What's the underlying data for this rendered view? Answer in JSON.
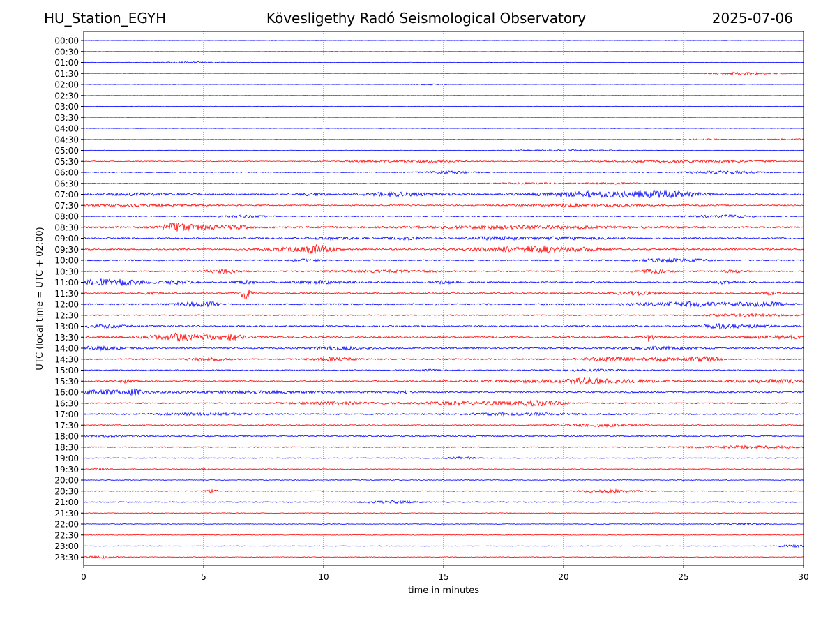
{
  "header": {
    "station": "HU_Station_EGYH",
    "title": "Kövesligethy Radó Seismological Observatory",
    "date": "2025-07-06"
  },
  "chart_data": {
    "type": "line",
    "xlabel": "time in minutes",
    "ylabel": "UTC (local time = UTC + 02:00)",
    "xlim": [
      0,
      30
    ],
    "x_ticks": [
      0,
      5,
      10,
      15,
      20,
      25,
      30
    ],
    "grid": "vertical dotted at x ticks",
    "trace_colors": [
      "#0000ff",
      "#ff0000"
    ],
    "traces": [
      {
        "label": "00:00",
        "noise": 0.25,
        "events": []
      },
      {
        "label": "00:30",
        "noise": 0.25,
        "events": []
      },
      {
        "label": "01:00",
        "noise": 0.3,
        "events": [
          [
            4.5,
            1.0,
            0.8
          ]
        ]
      },
      {
        "label": "01:30",
        "noise": 0.25,
        "events": [
          [
            27.5,
            1.0,
            1.8
          ]
        ]
      },
      {
        "label": "02:00",
        "noise": 0.25,
        "events": [
          [
            14.3,
            0.5,
            0.8
          ]
        ]
      },
      {
        "label": "02:30",
        "noise": 0.25,
        "events": []
      },
      {
        "label": "03:00",
        "noise": 0.3,
        "events": []
      },
      {
        "label": "03:30",
        "noise": 0.25,
        "events": []
      },
      {
        "label": "04:00",
        "noise": 0.3,
        "events": []
      },
      {
        "label": "04:30",
        "noise": 0.3,
        "events": [
          [
            25.8,
            0.8,
            0.8
          ],
          [
            29.3,
            0.8,
            0.9
          ]
        ]
      },
      {
        "label": "05:00",
        "noise": 0.35,
        "events": [
          [
            20.0,
            1.5,
            0.9
          ]
        ]
      },
      {
        "label": "05:30",
        "noise": 0.55,
        "events": [
          [
            13.2,
            1.6,
            1.4
          ],
          [
            24.5,
            2.0,
            1.2
          ],
          [
            27.5,
            0.8,
            1.2
          ]
        ]
      },
      {
        "label": "06:00",
        "noise": 0.6,
        "events": [
          [
            15.2,
            0.8,
            1.6
          ],
          [
            26.7,
            1.0,
            2.0
          ]
        ]
      },
      {
        "label": "06:30",
        "noise": 0.45,
        "events": [
          [
            18.5,
            1.5,
            0.9
          ],
          [
            22.0,
            0.8,
            1.0
          ]
        ]
      },
      {
        "label": "07:00",
        "noise": 1.0,
        "events": [
          [
            2.5,
            1.2,
            1.4
          ],
          [
            9.6,
            0.4,
            1.6
          ],
          [
            12.6,
            0.7,
            2.4
          ],
          [
            14.5,
            1.2,
            1.3
          ],
          [
            20.2,
            1.2,
            2.2
          ],
          [
            22.3,
            1.4,
            3.0
          ],
          [
            24.5,
            1.0,
            3.2
          ]
        ]
      },
      {
        "label": "07:30",
        "noise": 0.8,
        "events": [
          [
            2.5,
            1.5,
            1.4
          ],
          [
            21.2,
            2.0,
            1.6
          ]
        ]
      },
      {
        "label": "08:00",
        "noise": 0.7,
        "events": [
          [
            6.5,
            0.8,
            1.2
          ],
          [
            26.5,
            1.0,
            1.6
          ]
        ]
      },
      {
        "label": "08:30",
        "noise": 1.3,
        "events": [
          [
            3.5,
            0.4,
            2.8
          ],
          [
            4.0,
            0.4,
            3.2
          ],
          [
            5.1,
            0.6,
            2.6
          ],
          [
            6.5,
            0.3,
            2.8
          ],
          [
            18.5,
            3.0,
            1.4
          ]
        ]
      },
      {
        "label": "09:00",
        "noise": 1.0,
        "events": [
          [
            10.5,
            0.8,
            1.4
          ],
          [
            13.5,
            0.5,
            1.6
          ],
          [
            17.0,
            0.8,
            1.8
          ],
          [
            20.0,
            1.5,
            1.6
          ]
        ]
      },
      {
        "label": "09:30",
        "noise": 1.0,
        "events": [
          [
            8.8,
            1.0,
            2.2
          ],
          [
            9.8,
            0.4,
            4.8
          ],
          [
            17.7,
            1.2,
            2.8
          ],
          [
            18.9,
            0.5,
            2.6
          ],
          [
            20.6,
            0.8,
            2.6
          ]
        ]
      },
      {
        "label": "10:00",
        "noise": 0.9,
        "events": [
          [
            9.3,
            0.4,
            1.4
          ],
          [
            23.9,
            0.6,
            1.8
          ],
          [
            25.2,
            0.6,
            1.6
          ]
        ]
      },
      {
        "label": "10:30",
        "noise": 0.9,
        "events": [
          [
            5.8,
            0.5,
            2.4
          ],
          [
            12.5,
            1.5,
            1.3
          ],
          [
            23.8,
            0.5,
            2.4
          ],
          [
            27.0,
            0.4,
            1.5
          ]
        ]
      },
      {
        "label": "11:00",
        "noise": 1.0,
        "events": [
          [
            0.4,
            0.4,
            3.0
          ],
          [
            1.2,
            0.4,
            3.2
          ],
          [
            1.9,
            0.6,
            2.8
          ],
          [
            4.0,
            0.5,
            2.2
          ],
          [
            6.7,
            0.3,
            2.0
          ],
          [
            9.9,
            0.8,
            2.0
          ],
          [
            15.1,
            0.3,
            2.0
          ],
          [
            26.7,
            0.4,
            1.8
          ]
        ]
      },
      {
        "label": "11:30",
        "noise": 0.9,
        "events": [
          [
            6.75,
            0.12,
            12.0
          ],
          [
            2.9,
            0.3,
            1.5
          ],
          [
            23.0,
            0.6,
            2.3
          ],
          [
            28.6,
            0.3,
            2.0
          ]
        ]
      },
      {
        "label": "12:00",
        "noise": 1.0,
        "events": [
          [
            4.5,
            0.5,
            2.2
          ],
          [
            5.3,
            0.3,
            2.2
          ],
          [
            24.5,
            1.2,
            2.0
          ],
          [
            27.0,
            1.5,
            2.0
          ],
          [
            28.5,
            0.4,
            2.2
          ]
        ]
      },
      {
        "label": "12:30",
        "noise": 0.8,
        "events": [
          [
            27.6,
            1.2,
            1.8
          ]
        ]
      },
      {
        "label": "13:00",
        "noise": 1.1,
        "events": [
          [
            0.7,
            0.8,
            1.9
          ],
          [
            26.4,
            0.3,
            2.2
          ],
          [
            27.3,
            1.0,
            1.8
          ]
        ]
      },
      {
        "label": "13:30",
        "noise": 1.1,
        "events": [
          [
            3.5,
            1.0,
            2.2
          ],
          [
            4.0,
            0.4,
            2.6
          ],
          [
            5.2,
            1.0,
            2.0
          ],
          [
            6.2,
            0.3,
            2.8
          ],
          [
            23.6,
            0.1,
            6.5
          ],
          [
            29.2,
            1.0,
            1.6
          ]
        ]
      },
      {
        "label": "14:00",
        "noise": 1.0,
        "events": [
          [
            0.5,
            0.8,
            2.4
          ],
          [
            10.5,
            0.8,
            2.0
          ],
          [
            24.0,
            1.0,
            1.8
          ]
        ]
      },
      {
        "label": "14:30",
        "noise": 1.0,
        "events": [
          [
            5.2,
            0.5,
            1.9
          ],
          [
            10.5,
            0.6,
            2.2
          ],
          [
            22.0,
            0.8,
            2.4
          ],
          [
            24.1,
            0.5,
            2.4
          ],
          [
            25.5,
            0.3,
            2.4
          ],
          [
            26.1,
            0.3,
            3.0
          ]
        ]
      },
      {
        "label": "15:00",
        "noise": 0.75,
        "events": [
          [
            14.2,
            0.3,
            1.2
          ],
          [
            21.0,
            1.0,
            1.2
          ]
        ]
      },
      {
        "label": "15:30",
        "noise": 0.8,
        "events": [
          [
            1.7,
            0.2,
            2.2
          ],
          [
            18.5,
            2.0,
            1.7
          ],
          [
            21.0,
            0.4,
            2.2
          ],
          [
            22.0,
            1.5,
            2.0
          ],
          [
            28.8,
            1.5,
            2.0
          ]
        ]
      },
      {
        "label": "16:00",
        "noise": 1.0,
        "events": [
          [
            0.8,
            0.8,
            2.4
          ],
          [
            2.1,
            0.2,
            3.8
          ],
          [
            7.0,
            3.0,
            1.3
          ],
          [
            13.3,
            0.2,
            1.5
          ]
        ]
      },
      {
        "label": "16:30",
        "noise": 0.9,
        "events": [
          [
            10.5,
            1.5,
            1.6
          ],
          [
            15.3,
            1.0,
            1.6
          ],
          [
            17.5,
            1.5,
            1.9
          ],
          [
            19.0,
            0.6,
            2.3
          ]
        ]
      },
      {
        "label": "17:00",
        "noise": 0.9,
        "events": [
          [
            5.0,
            1.5,
            1.3
          ],
          [
            18.0,
            2.0,
            1.3
          ]
        ]
      },
      {
        "label": "17:30",
        "noise": 0.7,
        "events": [
          [
            21.5,
            1.0,
            1.7
          ]
        ]
      },
      {
        "label": "18:00",
        "noise": 0.8,
        "events": [
          [
            1.0,
            0.6,
            1.3
          ]
        ]
      },
      {
        "label": "18:30",
        "noise": 0.7,
        "events": [
          [
            27.6,
            1.6,
            1.8
          ]
        ]
      },
      {
        "label": "19:00",
        "noise": 0.6,
        "events": [
          [
            15.7,
            0.4,
            1.5
          ]
        ]
      },
      {
        "label": "19:30",
        "noise": 0.55,
        "events": [
          [
            0.8,
            0.2,
            1.2
          ],
          [
            5.0,
            0.1,
            1.2
          ]
        ]
      },
      {
        "label": "20:00",
        "noise": 0.5,
        "events": []
      },
      {
        "label": "20:30",
        "noise": 0.6,
        "events": [
          [
            5.3,
            0.2,
            1.8
          ],
          [
            22.0,
            0.8,
            2.0
          ]
        ]
      },
      {
        "label": "21:00",
        "noise": 0.7,
        "events": [
          [
            12.8,
            0.8,
            1.4
          ]
        ]
      },
      {
        "label": "21:30",
        "noise": 0.45,
        "events": []
      },
      {
        "label": "22:00",
        "noise": 0.45,
        "events": [
          [
            27.5,
            0.6,
            1.2
          ]
        ]
      },
      {
        "label": "22:30",
        "noise": 0.4,
        "events": []
      },
      {
        "label": "23:00",
        "noise": 0.45,
        "events": [
          [
            29.6,
            0.5,
            1.5
          ]
        ]
      },
      {
        "label": "23:30",
        "noise": 0.45,
        "events": [
          [
            0.8,
            0.4,
            1.6
          ]
        ]
      }
    ]
  }
}
